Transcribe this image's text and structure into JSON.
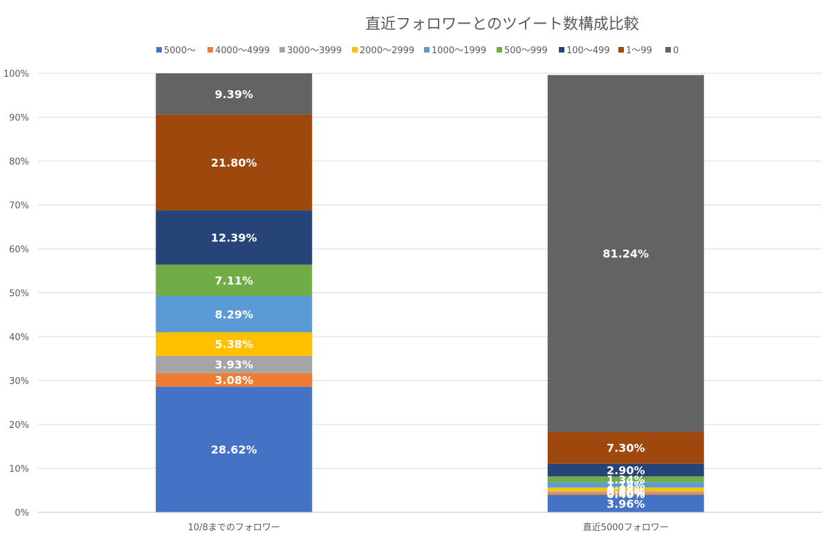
{
  "chart_data": {
    "type": "bar",
    "stacked": true,
    "title": "直近フォロワーとのツイート数構成比較",
    "xlabel": "",
    "ylabel": "",
    "ylim": [
      0,
      100
    ],
    "y_ticks": [
      "0%",
      "10%",
      "20%",
      "30%",
      "40%",
      "50%",
      "60%",
      "70%",
      "80%",
      "90%",
      "100%"
    ],
    "grid": true,
    "legend_position": "top",
    "categories": [
      "10/8までのフォロワー",
      "直近5000フォロワー"
    ],
    "series": [
      {
        "name": "5000〜",
        "color": "#4472C4",
        "values": [
          28.62,
          3.96
        ],
        "labels": [
          "28.62%",
          "3.96%"
        ]
      },
      {
        "name": "4000〜4999",
        "color": "#ED7D31",
        "values": [
          3.08,
          0.4
        ],
        "labels": [
          "3.08%",
          "0.40%"
        ]
      },
      {
        "name": "3000〜3999",
        "color": "#A5A5A5",
        "values": [
          3.93,
          0.4
        ],
        "labels": [
          "3.93%",
          "0.40%"
        ]
      },
      {
        "name": "2000〜2999",
        "color": "#FFC000",
        "values": [
          5.38,
          0.88
        ],
        "labels": [
          "5.38%",
          "0.88%"
        ]
      },
      {
        "name": "1000〜1999",
        "color": "#5B9BD5",
        "values": [
          8.29,
          1.18
        ],
        "labels": [
          "8.29%",
          "1.18%"
        ]
      },
      {
        "name": "500〜999",
        "color": "#70AD47",
        "values": [
          7.11,
          1.34
        ],
        "labels": [
          "7.11%",
          "1.34%"
        ]
      },
      {
        "name": "100〜499",
        "color": "#264478",
        "values": [
          12.39,
          2.9
        ],
        "labels": [
          "12.39%",
          "2.90%"
        ]
      },
      {
        "name": "1〜99",
        "color": "#9E480E",
        "values": [
          21.8,
          7.3
        ],
        "labels": [
          "21.80%",
          "7.30%"
        ]
      },
      {
        "name": "0",
        "color": "#636363",
        "values": [
          9.39,
          81.24
        ],
        "labels": [
          "9.39%",
          "81.24%"
        ]
      }
    ]
  }
}
